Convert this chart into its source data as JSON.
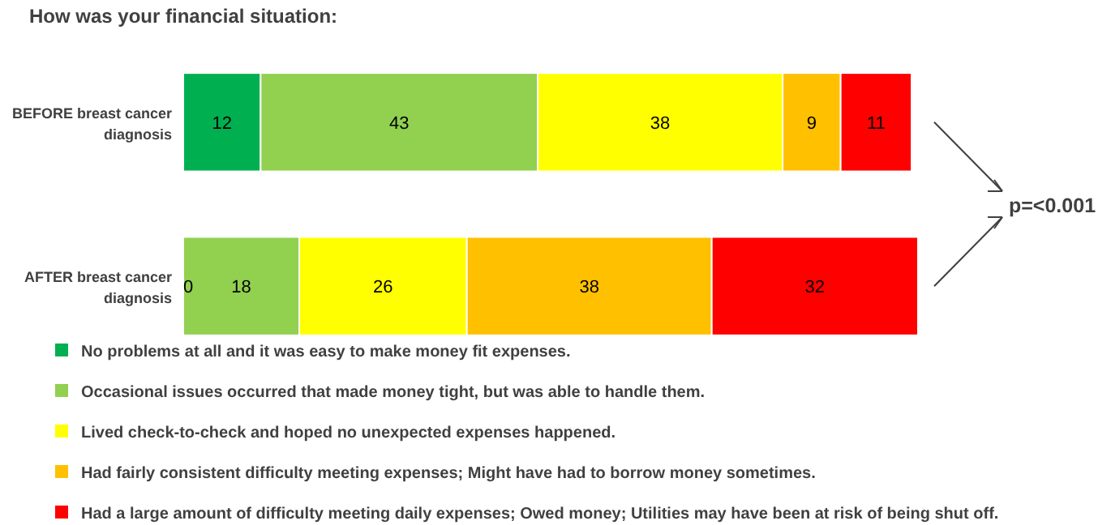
{
  "chart_data": {
    "type": "bar",
    "title": "How was your financial situation:",
    "orientation": "horizontal",
    "stacked": true,
    "categories": [
      "BEFORE breast cancer diagnosis",
      "AFTER breast cancer diagnosis"
    ],
    "series": [
      {
        "name": "No problems at all and it was easy to make money fit expenses.",
        "color": "#00b050",
        "values": [
          12,
          0
        ],
        "value_labels": [
          "12",
          null
        ]
      },
      {
        "name": "Occasional issues occurred that made money tight, but was able to handle them.",
        "color": "#92d050",
        "values": [
          43,
          18
        ],
        "value_labels": [
          "43",
          "18"
        ]
      },
      {
        "name": "Lived check-to-check and hoped no unexpected expenses happened.",
        "color": "#ffff00",
        "values": [
          38,
          26
        ],
        "value_labels": [
          "38",
          "26"
        ]
      },
      {
        "name": "Had fairly consistent difficulty meeting expenses; Might have had to borrow money sometimes.",
        "color": "#ffc000",
        "values": [
          9,
          38
        ],
        "value_labels": [
          "9",
          "38"
        ]
      },
      {
        "name": "Had a large amount of difficulty meeting daily expenses; Owed money; Utilities may have been at risk of being shut off.",
        "color": "#ff0000",
        "values": [
          11,
          32
        ],
        "value_labels": [
          "11",
          "32"
        ]
      }
    ],
    "xlim": [
      0,
      114
    ],
    "tick_labels": "y",
    "legend": "bottom",
    "annotations": [
      "p=<0.001",
      {
        "text": "0",
        "x": 0,
        "y": "AFTER breast cancer diagnosis"
      }
    ]
  }
}
